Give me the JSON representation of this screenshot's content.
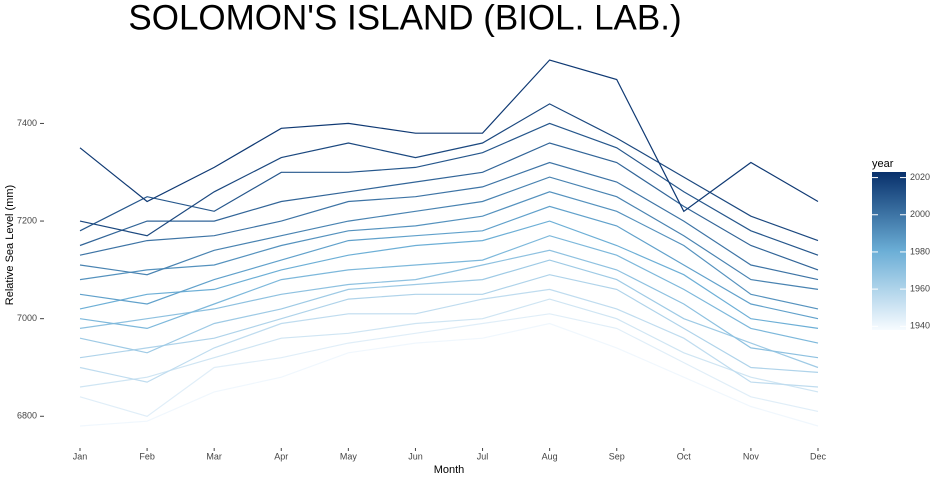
{
  "chart_data": {
    "type": "line",
    "title": "SOLOMON'S ISLAND (BIOL. LAB.)",
    "x_label": "Month",
    "y_label": "Relative Sea Level (mm)",
    "categories": [
      "Jan",
      "Feb",
      "Mar",
      "Apr",
      "May",
      "Jun",
      "Jul",
      "Aug",
      "Sep",
      "Oct",
      "Nov",
      "Dec"
    ],
    "ylim": [
      6735,
      7530
    ],
    "yticks": [
      6800,
      7000,
      7200,
      7400
    ],
    "color_scale": {
      "title": "year",
      "lim": [
        1938,
        2023
      ],
      "ticks": [
        1940,
        1960,
        1980,
        2000,
        2020
      ],
      "colors": [
        "#f7fbff",
        "#6baed6",
        "#08306b"
      ]
    },
    "series": [
      {
        "year": 1940,
        "values": [
          6780,
          6790,
          6850,
          6880,
          6930,
          6950,
          6960,
          6990,
          6940,
          6880,
          6820,
          6780
        ]
      },
      {
        "year": 1945,
        "values": [
          6840,
          6800,
          6900,
          6920,
          6950,
          6970,
          6990,
          7010,
          6980,
          6910,
          6840,
          6810
        ]
      },
      {
        "year": 1950,
        "values": [
          6860,
          6880,
          6920,
          6960,
          6970,
          6990,
          7000,
          7040,
          7000,
          6930,
          6880,
          6850
        ]
      },
      {
        "year": 1955,
        "values": [
          6900,
          6870,
          6940,
          6990,
          7010,
          7010,
          7040,
          7060,
          7020,
          6960,
          6870,
          6860
        ]
      },
      {
        "year": 1960,
        "values": [
          6920,
          6940,
          6960,
          7000,
          7040,
          7050,
          7050,
          7090,
          7060,
          6980,
          6900,
          6890
        ]
      },
      {
        "year": 1965,
        "values": [
          6960,
          6930,
          6990,
          7020,
          7060,
          7070,
          7080,
          7120,
          7080,
          7000,
          6950,
          6900
        ]
      },
      {
        "year": 1970,
        "values": [
          6980,
          7000,
          7020,
          7050,
          7070,
          7080,
          7110,
          7140,
          7100,
          7030,
          6940,
          6920
        ]
      },
      {
        "year": 1975,
        "values": [
          7000,
          6980,
          7030,
          7080,
          7100,
          7110,
          7120,
          7170,
          7130,
          7060,
          6980,
          6950
        ]
      },
      {
        "year": 1980,
        "values": [
          7020,
          7050,
          7060,
          7100,
          7130,
          7150,
          7160,
          7200,
          7150,
          7090,
          7000,
          6980
        ]
      },
      {
        "year": 1985,
        "values": [
          7050,
          7030,
          7080,
          7120,
          7160,
          7170,
          7180,
          7230,
          7190,
          7110,
          7030,
          7000
        ]
      },
      {
        "year": 1990,
        "values": [
          7080,
          7100,
          7110,
          7150,
          7180,
          7190,
          7210,
          7260,
          7220,
          7150,
          7050,
          7020
        ]
      },
      {
        "year": 1995,
        "values": [
          7110,
          7090,
          7140,
          7170,
          7200,
          7220,
          7240,
          7290,
          7250,
          7170,
          7080,
          7060
        ]
      },
      {
        "year": 2000,
        "values": [
          7130,
          7160,
          7170,
          7200,
          7240,
          7250,
          7270,
          7320,
          7280,
          7200,
          7110,
          7080
        ]
      },
      {
        "year": 2005,
        "values": [
          7150,
          7200,
          7200,
          7240,
          7260,
          7280,
          7300,
          7360,
          7320,
          7230,
          7150,
          7100
        ]
      },
      {
        "year": 2010,
        "values": [
          7180,
          7250,
          7220,
          7300,
          7300,
          7310,
          7340,
          7400,
          7350,
          7260,
          7180,
          7130
        ]
      },
      {
        "year": 2015,
        "values": [
          7200,
          7170,
          7260,
          7330,
          7360,
          7330,
          7360,
          7440,
          7370,
          7290,
          7210,
          7160
        ]
      },
      {
        "year": 2020,
        "values": [
          7350,
          7240,
          7310,
          7390,
          7400,
          7380,
          7380,
          7530,
          7490,
          7220,
          7320,
          7240
        ]
      }
    ]
  }
}
